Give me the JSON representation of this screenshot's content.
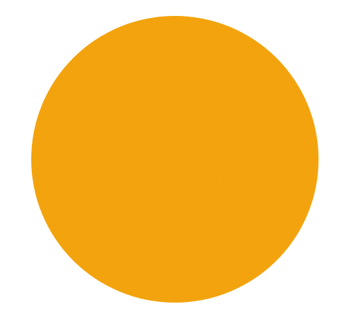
{
  "shape": {
    "kind": "circle",
    "fill_color": "#FBA212",
    "texture": "grainy-noise"
  },
  "background_color": "#FFFFFF"
}
